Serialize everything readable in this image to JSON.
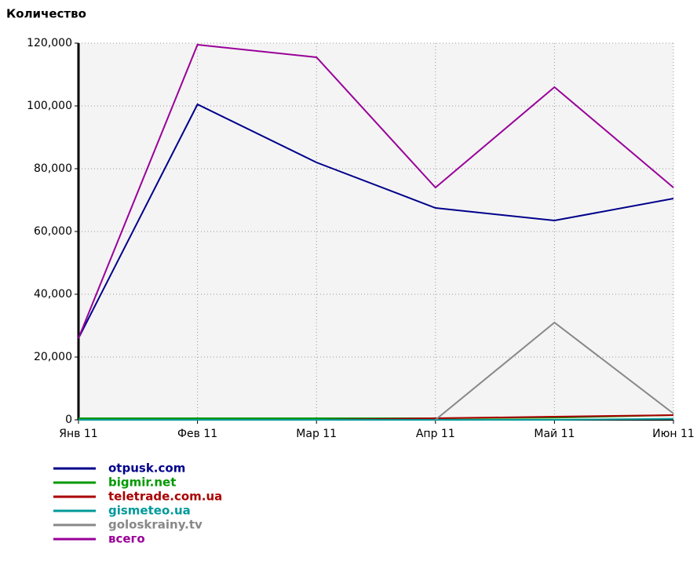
{
  "chart_data": {
    "type": "line",
    "title": "Количество",
    "categories": [
      "Янв 11",
      "Фев 11",
      "Мар 11",
      "Апр 11",
      "Май 11",
      "Июн 11"
    ],
    "series": [
      {
        "name": "otpusk.com",
        "color": "#00008b",
        "values": [
          26000,
          100500,
          82000,
          67500,
          63500,
          70500
        ]
      },
      {
        "name": "bigmir.net",
        "color": "#009900",
        "values": [
          500,
          500,
          500,
          500,
          700,
          1500
        ]
      },
      {
        "name": "teletrade.com.ua",
        "color": "#aa0000",
        "values": [
          0,
          0,
          0,
          500,
          1000,
          1500
        ]
      },
      {
        "name": "gismeteo.ua",
        "color": "#009999",
        "values": [
          0,
          0,
          0,
          0,
          0,
          300
        ]
      },
      {
        "name": "goloskrainy.tv",
        "color": "#888888",
        "values": [
          null,
          null,
          null,
          0,
          31000,
          2000
        ]
      },
      {
        "name": "всего",
        "color": "#990099",
        "values": [
          26000,
          119500,
          115500,
          74000,
          106000,
          74000
        ]
      }
    ],
    "ylim": [
      0,
      120000
    ],
    "yticks": [
      0,
      {
        "value": 20000,
        "label": "20,000"
      },
      {
        "value": 40000,
        "label": "40,000"
      },
      {
        "value": 60000,
        "label": "60,000"
      },
      {
        "value": 80000,
        "label": "80,000"
      },
      {
        "value": 100000,
        "label": "100,000"
      },
      {
        "value": 120000,
        "label": "120,000"
      }
    ],
    "grid": true,
    "legend": "bottom-left"
  }
}
